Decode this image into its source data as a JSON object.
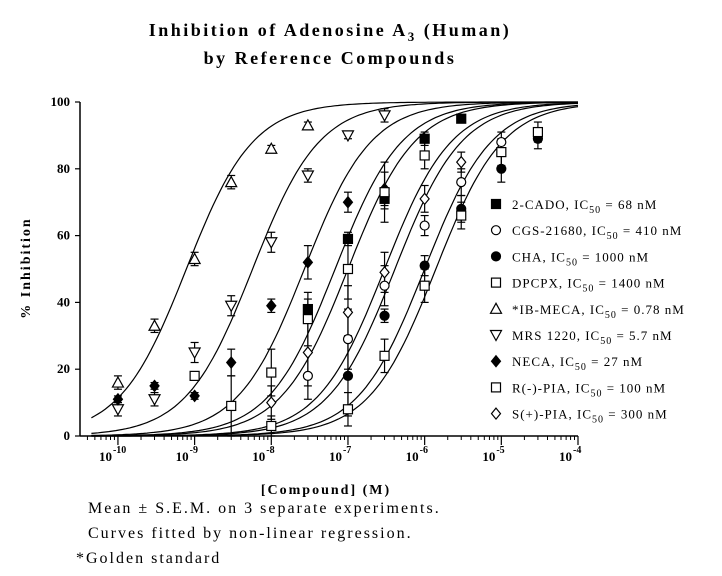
{
  "chart_data": {
    "type": "scatter",
    "title_lines": [
      "Inhibition of Adenosine A",
      "by Reference Compounds"
    ],
    "title_subscript": "3",
    "title_tail": " (Human)",
    "xlabel": "[Compound] (M)",
    "ylabel": "% Inhibition",
    "xscale": "log",
    "xlim": [
      3.2e-11,
      0.0001
    ],
    "ylim": [
      0,
      100
    ],
    "x_ticks": [
      {
        "base": "10",
        "exp": "-10",
        "value": 1e-10
      },
      {
        "base": "10",
        "exp": "-9",
        "value": 1e-09
      },
      {
        "base": "10",
        "exp": "-8",
        "value": 1e-08
      },
      {
        "base": "10",
        "exp": "-7",
        "value": 1e-07
      },
      {
        "base": "10",
        "exp": "-6",
        "value": 1e-06
      },
      {
        "base": "10",
        "exp": "-5",
        "value": 1e-05
      },
      {
        "base": "10",
        "exp": "-4",
        "value": 0.0001
      }
    ],
    "y_ticks": [
      "0",
      "20",
      "40",
      "60",
      "80",
      "100"
    ],
    "legend_position": "right",
    "series": [
      {
        "name": "2-CADO",
        "ic50_label": "= 68 nM",
        "ic50": 6.8e-08,
        "marker": "square-filled",
        "points": [
          [
            3e-08,
            38,
            3
          ],
          [
            1e-07,
            59,
            2
          ],
          [
            3e-07,
            71,
            3
          ],
          [
            1e-06,
            89,
            2
          ],
          [
            3e-06,
            95,
            1
          ]
        ]
      },
      {
        "name": "CGS-21680",
        "ic50_label": "= 410 nM",
        "ic50": 4.1e-07,
        "marker": "circle-open",
        "points": [
          [
            3e-08,
            18,
            7
          ],
          [
            1e-07,
            29,
            9
          ],
          [
            3e-07,
            45,
            6
          ],
          [
            1e-06,
            63,
            3
          ],
          [
            3e-06,
            76,
            4
          ],
          [
            1e-05,
            88,
            3
          ]
        ]
      },
      {
        "name": "CHA",
        "ic50_label": "= 1000 nM",
        "ic50": 1e-06,
        "marker": "circle-filled",
        "points": [
          [
            1e-07,
            18,
            12
          ],
          [
            3e-07,
            36,
            2
          ],
          [
            1e-06,
            51,
            3
          ],
          [
            3e-06,
            68,
            4
          ],
          [
            1e-05,
            80,
            4
          ],
          [
            3e-05,
            89,
            3
          ]
        ]
      },
      {
        "name": "DPCPX",
        "ic50_label": "= 1400 nM",
        "ic50": 1.4e-06,
        "marker": "square-open",
        "points": [
          [
            1e-08,
            3,
            3
          ],
          [
            1e-07,
            8,
            5
          ],
          [
            3e-07,
            24,
            5
          ],
          [
            1e-06,
            45,
            5
          ],
          [
            3e-06,
            66,
            4
          ],
          [
            1e-05,
            85,
            4
          ],
          [
            3e-05,
            91,
            3
          ]
        ]
      },
      {
        "name": "*IB-MECA",
        "ic50_label": "= 0.78 nM",
        "ic50": 7.8e-10,
        "marker": "triangle-up-open",
        "points": [
          [
            1e-10,
            16,
            2
          ],
          [
            3e-10,
            33,
            2
          ],
          [
            1e-09,
            53,
            2
          ],
          [
            3e-09,
            76,
            2
          ],
          [
            1e-08,
            86,
            1
          ],
          [
            3e-08,
            93,
            1
          ]
        ]
      },
      {
        "name": "MRS 1220",
        "ic50_label": "= 5.7 nM",
        "ic50": 5.7e-09,
        "marker": "triangle-down-open",
        "points": [
          [
            1e-10,
            8,
            2
          ],
          [
            3e-10,
            11,
            2
          ],
          [
            1e-09,
            25,
            3
          ],
          [
            3e-09,
            39,
            3
          ],
          [
            1e-08,
            58,
            3
          ],
          [
            3e-08,
            78,
            2
          ],
          [
            1e-07,
            90,
            1
          ],
          [
            3e-07,
            96,
            2
          ]
        ]
      },
      {
        "name": "NECA",
        "ic50_label": "= 27 nM",
        "ic50": 2.7e-08,
        "marker": "diamond-filled",
        "points": [
          [
            1e-10,
            11,
            1
          ],
          [
            3e-10,
            15,
            1
          ],
          [
            1e-09,
            12,
            1
          ],
          [
            3e-09,
            22,
            4
          ],
          [
            1e-08,
            39,
            2
          ],
          [
            3e-08,
            52,
            5
          ],
          [
            1e-07,
            70,
            3
          ],
          [
            3e-07,
            74,
            5
          ]
        ]
      },
      {
        "name": "R(-)-PIA",
        "ic50_label": "= 100 nM",
        "ic50": 1e-07,
        "marker": "square-open",
        "points": [
          [
            1e-09,
            18,
            1
          ],
          [
            3e-09,
            9,
            9
          ],
          [
            1e-08,
            19,
            7
          ],
          [
            3e-08,
            35,
            8
          ],
          [
            1e-07,
            50,
            9
          ],
          [
            3e-07,
            73,
            9
          ],
          [
            1e-06,
            84,
            4
          ]
        ]
      },
      {
        "name": "S(+)-PIA",
        "ic50_label": "= 300 nM",
        "ic50": 3e-07,
        "marker": "diamond-open",
        "points": [
          [
            1e-08,
            10,
            5
          ],
          [
            3e-08,
            25,
            10
          ],
          [
            1e-07,
            37,
            8
          ],
          [
            3e-07,
            49,
            6
          ],
          [
            1e-06,
            71,
            4
          ],
          [
            3e-06,
            82,
            3
          ]
        ]
      }
    ]
  },
  "notes": {
    "line1": "Mean ± S.E.M. on 3 separate experiments.",
    "line2": "Curves fitted by non-linear regression.",
    "line3": "*Golden standard"
  },
  "legend_ic_label": "IC",
  "legend_ic_subscript": "50"
}
